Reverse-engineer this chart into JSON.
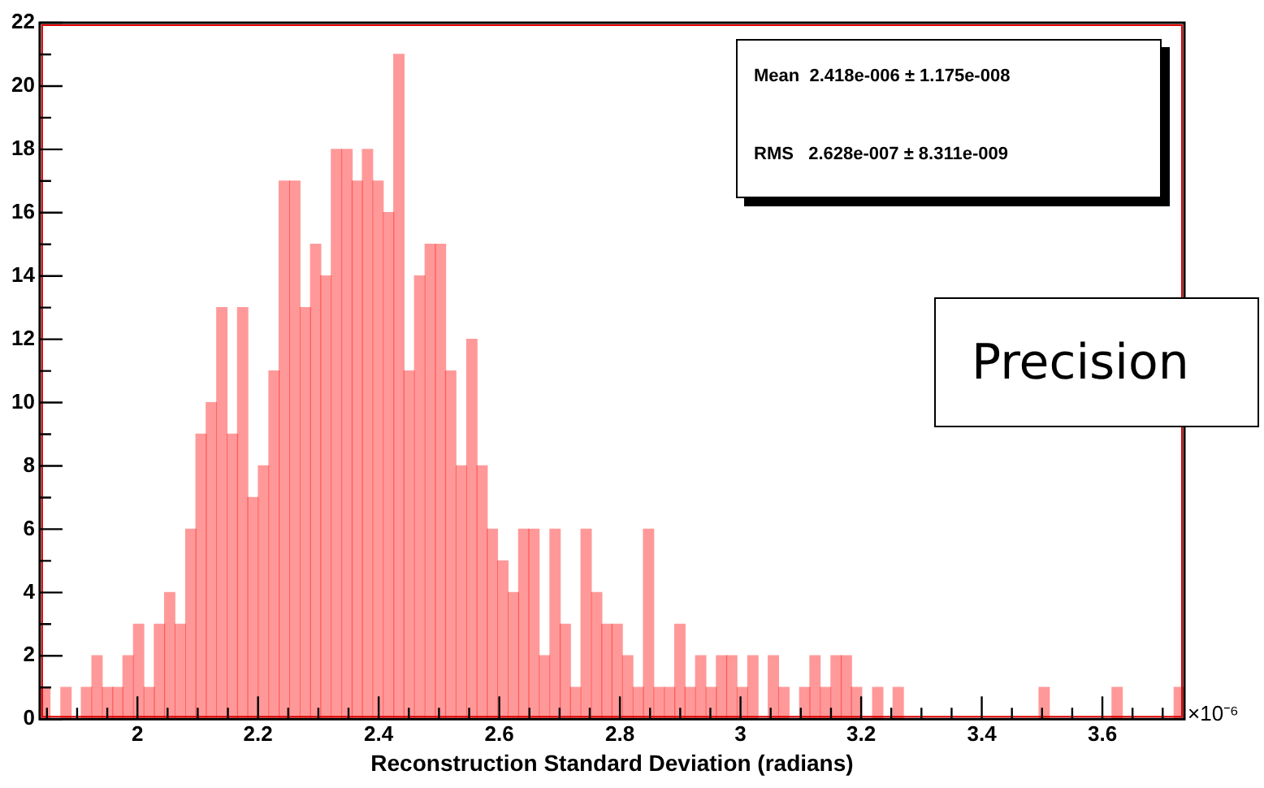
{
  "chart_data": {
    "type": "histogram",
    "xlabel": "Reconstruction Standard Deviation (radians)",
    "bins": [
      1.838,
      1.855,
      1.873,
      1.89,
      1.907,
      1.924,
      1.942,
      1.959,
      1.976,
      1.993,
      2.011,
      2.028,
      2.045,
      2.062,
      2.08,
      2.097,
      2.114,
      2.131,
      2.149,
      2.166,
      2.183,
      2.2,
      2.218,
      2.235,
      2.252,
      2.27,
      2.287,
      2.304,
      2.321,
      2.339,
      2.356,
      2.373,
      2.39,
      2.408,
      2.425,
      2.442,
      2.459,
      2.477,
      2.494,
      2.511,
      2.528,
      2.546,
      2.563,
      2.58,
      2.597,
      2.615,
      2.632,
      2.649,
      2.666,
      2.684,
      2.701,
      2.718,
      2.735,
      2.753,
      2.77,
      2.787,
      2.804,
      2.822,
      2.839,
      2.856,
      2.874,
      2.891,
      2.908,
      2.925,
      2.943,
      2.96,
      2.977,
      2.994,
      3.012,
      3.029,
      3.046,
      3.063,
      3.081,
      3.098,
      3.115,
      3.132,
      3.15,
      3.167,
      3.184,
      3.201,
      3.219,
      3.236,
      3.253,
      3.27,
      3.288,
      3.305,
      3.322,
      3.339,
      3.357,
      3.374,
      3.391,
      3.409,
      3.426,
      3.443,
      3.46,
      3.478,
      3.495,
      3.512,
      3.529,
      3.547,
      3.564,
      3.581,
      3.598,
      3.616,
      3.633,
      3.65,
      3.667,
      3.685,
      3.702,
      3.719,
      3.736
    ],
    "values": [
      1,
      0,
      1,
      0,
      1,
      2,
      1,
      1,
      2,
      3,
      1,
      3,
      4,
      3,
      6,
      9,
      10,
      13,
      9,
      13,
      7,
      8,
      11,
      17,
      17,
      13,
      15,
      14,
      18,
      18,
      17,
      18,
      17,
      16,
      21,
      11,
      14,
      15,
      15,
      11,
      8,
      12,
      8,
      6,
      5,
      4,
      6,
      6,
      2,
      6,
      3,
      1,
      6,
      4,
      3,
      3,
      2,
      1,
      6,
      1,
      1,
      3,
      1,
      2,
      1,
      2,
      2,
      1,
      2,
      0,
      2,
      1,
      0,
      1,
      2,
      1,
      2,
      2,
      1,
      0,
      1,
      0,
      1,
      0,
      0,
      0,
      0,
      0,
      0,
      0,
      0,
      0,
      0,
      0,
      0,
      0,
      1,
      0,
      0,
      0,
      0,
      0,
      0,
      1,
      0,
      0,
      0,
      0,
      0,
      1
    ],
    "color": "#ff0000",
    "xlim": [
      1.838,
      3.736
    ],
    "xticks": [
      2,
      2.2,
      2.4,
      2.6,
      2.8,
      3,
      3.2,
      3.4,
      3.6
    ],
    "ylim": [
      0,
      22
    ],
    "yticks": [
      0,
      2,
      4,
      6,
      8,
      10,
      12,
      14,
      16,
      18,
      20,
      22
    ],
    "grid": false,
    "legend": false,
    "annotations": [
      "Mean  2.418e-006 ± 1.175e-008",
      "RMS   2.628e-007 ± 8.311e-009",
      "Precision",
      "×10⁻⁶"
    ]
  }
}
